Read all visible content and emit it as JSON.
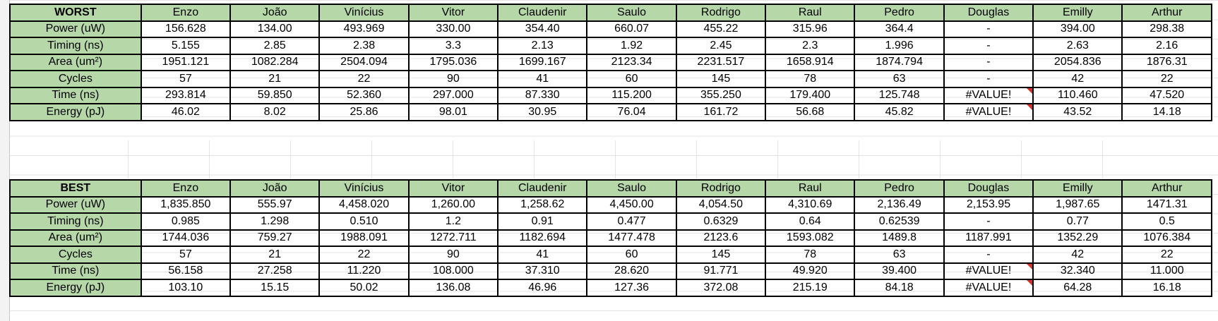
{
  "worst": {
    "corner": "WORST",
    "names": [
      "Enzo",
      "João",
      "Vinícius",
      "Vitor",
      "Claudenir",
      "Saulo",
      "Rodrigo",
      "Raul",
      "Pedro",
      "Douglas",
      "Emilly",
      "Arthur"
    ],
    "rows": [
      {
        "label": "Power (uW)",
        "values": [
          "156.628",
          "134.00",
          "493.969",
          "330.00",
          "354.40",
          "660.07",
          "455.22",
          "315.96",
          "364.4",
          "-",
          "394.00",
          "298.38"
        ]
      },
      {
        "label": "Timing (ns)",
        "values": [
          "5.155",
          "2.85",
          "2.38",
          "3.3",
          "2.13",
          "1.92",
          "2.45",
          "2.3",
          "1.996",
          "-",
          "2.63",
          "2.16"
        ]
      },
      {
        "label": "Area (um²)",
        "values": [
          "1951.121",
          "1082.284",
          "2504.094",
          "1795.036",
          "1699.167",
          "2123.34",
          "2231.517",
          "1658.914",
          "1874.794",
          "-",
          "2054.836",
          "1876.31"
        ]
      },
      {
        "label": "Cycles",
        "values": [
          "57",
          "21",
          "22",
          "90",
          "41",
          "60",
          "145",
          "78",
          "63",
          "-",
          "42",
          "22"
        ]
      },
      {
        "label": "Time (ns)",
        "values": [
          "293.814",
          "59.850",
          "52.360",
          "297.000",
          "87.330",
          "115.200",
          "355.250",
          "179.400",
          "125.748",
          "#VALUE!",
          "110.460",
          "47.520"
        ]
      },
      {
        "label": "Energy (pJ)",
        "values": [
          "46.02",
          "8.02",
          "25.86",
          "98.01",
          "30.95",
          "76.04",
          "161.72",
          "56.68",
          "45.82",
          "#VALUE!",
          "43.52",
          "14.18"
        ]
      }
    ]
  },
  "best": {
    "corner": "BEST",
    "names": [
      "Enzo",
      "João",
      "Vinícius",
      "Vitor",
      "Claudenir",
      "Saulo",
      "Rodrigo",
      "Raul",
      "Pedro",
      "Douglas",
      "Emilly",
      "Arthur"
    ],
    "rows": [
      {
        "label": "Power (uW)",
        "values": [
          "1,835.850",
          "555.97",
          "4,458.020",
          "1,260.00",
          "1,258.62",
          "4,450.00",
          "4,054.50",
          "4,310.69",
          "2,136.49",
          "2,153.95",
          "1,987.65",
          "1471.31"
        ]
      },
      {
        "label": "Timing (ns)",
        "values": [
          "0.985",
          "1.298",
          "0.510",
          "1.2",
          "0.91",
          "0.477",
          "0.6329",
          "0.64",
          "0.62539",
          "-",
          "0.77",
          "0.5"
        ]
      },
      {
        "label": "Area (um²)",
        "values": [
          "1744.036",
          "759.27",
          "1988.091",
          "1272.711",
          "1182.694",
          "1477.478",
          "2123.6",
          "1593.082",
          "1489.8",
          "1187.991",
          "1352.29",
          "1076.384"
        ]
      },
      {
        "label": "Cycles",
        "values": [
          "57",
          "21",
          "22",
          "90",
          "41",
          "60",
          "145",
          "78",
          "63",
          "-",
          "42",
          "22"
        ]
      },
      {
        "label": "Time (ns)",
        "values": [
          "56.158",
          "27.258",
          "11.220",
          "108.000",
          "37.310",
          "28.620",
          "91.771",
          "49.920",
          "39.400",
          "#VALUE!",
          "32.340",
          "11.000"
        ]
      },
      {
        "label": "Energy (pJ)",
        "values": [
          "103.10",
          "15.15",
          "50.02",
          "136.08",
          "46.96",
          "127.36",
          "372.08",
          "215.19",
          "84.18",
          "#VALUE!",
          "64.28",
          "16.18"
        ]
      }
    ]
  },
  "colors": {
    "header_fill": "#b6d7a8",
    "error_marker": "#d93025",
    "border": "#000000"
  }
}
